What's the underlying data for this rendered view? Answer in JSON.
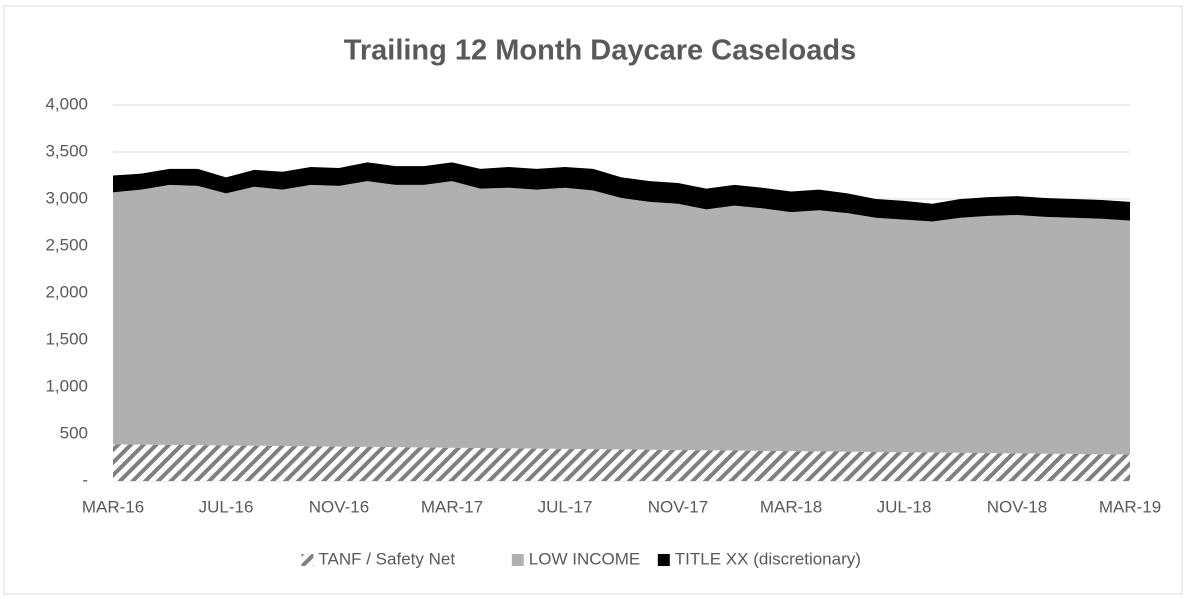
{
  "chart_data": {
    "type": "stacked-area",
    "title": "Trailing 12 Month Daycare Caseloads",
    "categories": [
      "MAR-16",
      null,
      null,
      null,
      "JUL-16",
      null,
      null,
      null,
      "NOV-16",
      null,
      null,
      null,
      "MAR-17",
      null,
      null,
      null,
      "JUL-17",
      null,
      null,
      null,
      "NOV-17",
      null,
      null,
      null,
      "MAR-18",
      null,
      null,
      null,
      "JUL-18",
      null,
      null,
      null,
      "NOV-18",
      null,
      null,
      null,
      "MAR-19"
    ],
    "series": [
      {
        "name": "TANF / Safety Net",
        "color": "#7f7f7f",
        "pattern": "diagonal-hatch",
        "values": [
          390,
          387,
          384,
          381,
          378,
          375,
          372,
          369,
          366,
          363,
          360,
          357,
          354,
          351,
          348,
          345,
          342,
          339,
          336,
          333,
          330,
          327,
          324,
          321,
          318,
          315,
          312,
          309,
          306,
          303,
          300,
          297,
          294,
          291,
          288,
          285,
          282
        ]
      },
      {
        "name": "LOW INCOME",
        "color": "#b0b0b0",
        "values": [
          2680,
          2713,
          2766,
          2759,
          2682,
          2755,
          2728,
          2781,
          2774,
          2827,
          2790,
          2793,
          2836,
          2759,
          2772,
          2755,
          2778,
          2751,
          2674,
          2637,
          2620,
          2563,
          2606,
          2579,
          2542,
          2565,
          2538,
          2491,
          2474,
          2457,
          2500,
          2523,
          2536,
          2519,
          2512,
          2505,
          2488
        ]
      },
      {
        "name": "TITLE XX (discretionary)",
        "color": "#000000",
        "values": [
          180,
          170,
          170,
          180,
          170,
          180,
          190,
          190,
          190,
          200,
          200,
          200,
          200,
          210,
          220,
          220,
          220,
          230,
          220,
          220,
          220,
          220,
          220,
          220,
          220,
          220,
          210,
          200,
          200,
          190,
          200,
          200,
          200,
          200,
          200,
          200,
          200
        ]
      }
    ],
    "ylim": [
      0,
      4000
    ],
    "yticks": [
      {
        "value": 0,
        "label": "-"
      },
      500,
      {
        "value": 1000,
        "label": "1,000"
      },
      {
        "value": 1500,
        "label": "1,500"
      },
      {
        "value": 2000,
        "label": "2,000"
      },
      {
        "value": 2500,
        "label": "2,500"
      },
      {
        "value": 3000,
        "label": "3,000"
      },
      {
        "value": 3500,
        "label": "3,500"
      },
      {
        "value": 4000,
        "label": "4,000"
      }
    ],
    "grid": true,
    "legend": "bottom"
  }
}
